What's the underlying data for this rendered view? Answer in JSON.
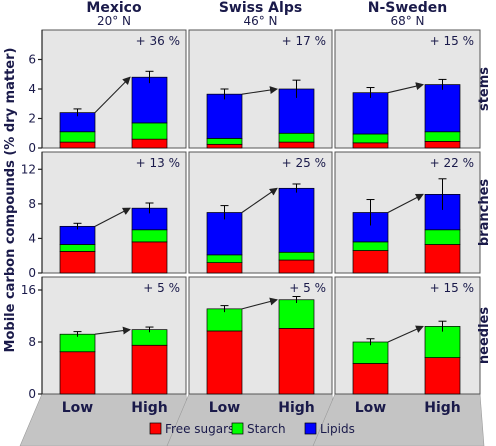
{
  "chart_data": {
    "type": "bar",
    "stacked": true,
    "ylabel": "Mobile carbon compounds (% dry matter)",
    "sites": [
      {
        "name": "Mexico",
        "lat": "20° N"
      },
      {
        "name": "Swiss Alps",
        "lat": "46° N"
      },
      {
        "name": "N-Sweden",
        "lat": "68° N"
      }
    ],
    "tissues": [
      "stems",
      "branches",
      "needles"
    ],
    "categories": [
      "Low",
      "High"
    ],
    "legend": [
      {
        "name": "Free sugars",
        "color": "#ff0000"
      },
      {
        "name": "Starch",
        "color": "#00ff00"
      },
      {
        "name": "Lipids",
        "color": "#0000ff"
      }
    ],
    "legend_position": "bottom",
    "rows": [
      {
        "tissue": "stems",
        "ylim": [
          0,
          8
        ],
        "yticks": [
          0,
          2,
          4,
          6
        ],
        "panels": [
          {
            "site": "Mexico",
            "change": "+ 36 %",
            "bars": [
              {
                "category": "Low",
                "free_sugars": 0.4,
                "starch": 0.7,
                "lipids": 1.3,
                "total": 2.4,
                "error": 0.25
              },
              {
                "category": "High",
                "free_sugars": 0.6,
                "starch": 1.1,
                "lipids": 3.1,
                "total": 4.8,
                "error": 0.4
              }
            ]
          },
          {
            "site": "Swiss Alps",
            "change": "+ 17 %",
            "bars": [
              {
                "category": "Low",
                "free_sugars": 0.25,
                "starch": 0.4,
                "lipids": 3.0,
                "total": 3.65,
                "error": 0.35
              },
              {
                "category": "High",
                "free_sugars": 0.4,
                "starch": 0.6,
                "lipids": 3.0,
                "total": 4.0,
                "error": 0.6
              }
            ]
          },
          {
            "site": "N-Sweden",
            "change": "+ 15 %",
            "bars": [
              {
                "category": "Low",
                "free_sugars": 0.35,
                "starch": 0.6,
                "lipids": 2.8,
                "total": 3.75,
                "error": 0.35
              },
              {
                "category": "High",
                "free_sugars": 0.45,
                "starch": 0.65,
                "lipids": 3.2,
                "total": 4.3,
                "error": 0.35
              }
            ]
          }
        ]
      },
      {
        "tissue": "branches",
        "ylim": [
          0,
          14
        ],
        "yticks": [
          0,
          4,
          8,
          12
        ],
        "panels": [
          {
            "site": "Mexico",
            "change": "+ 13 %",
            "bars": [
              {
                "category": "Low",
                "free_sugars": 2.5,
                "starch": 0.8,
                "lipids": 2.1,
                "total": 5.4,
                "error": 0.35
              },
              {
                "category": "High",
                "free_sugars": 3.6,
                "starch": 1.4,
                "lipids": 2.5,
                "total": 7.5,
                "error": 0.6
              }
            ]
          },
          {
            "site": "Swiss Alps",
            "change": "+ 25 %",
            "bars": [
              {
                "category": "Low",
                "free_sugars": 1.2,
                "starch": 0.9,
                "lipids": 4.9,
                "total": 7.0,
                "error": 0.8
              },
              {
                "category": "High",
                "free_sugars": 1.5,
                "starch": 0.9,
                "lipids": 7.4,
                "total": 9.8,
                "error": 0.5
              }
            ]
          },
          {
            "site": "N-Sweden",
            "change": "+ 22 %",
            "bars": [
              {
                "category": "Low",
                "free_sugars": 2.6,
                "starch": 1.0,
                "lipids": 3.4,
                "total": 7.0,
                "error": 1.5
              },
              {
                "category": "High",
                "free_sugars": 3.3,
                "starch": 1.7,
                "lipids": 4.1,
                "total": 9.1,
                "error": 1.8
              }
            ]
          }
        ]
      },
      {
        "tissue": "needles",
        "ylim": [
          0,
          18
        ],
        "yticks": [
          0,
          8,
          16
        ],
        "panels": [
          {
            "site": "Mexico",
            "change": "+ 5 %",
            "bars": [
              {
                "category": "Low",
                "free_sugars": 6.5,
                "starch": 2.7,
                "lipids": 0,
                "total": 9.2,
                "error": 0.4
              },
              {
                "category": "High",
                "free_sugars": 7.5,
                "starch": 2.4,
                "lipids": 0,
                "total": 9.9,
                "error": 0.4
              }
            ]
          },
          {
            "site": "Swiss Alps",
            "change": "+ 5 %",
            "bars": [
              {
                "category": "Low",
                "free_sugars": 9.7,
                "starch": 3.4,
                "lipids": 0,
                "total": 13.1,
                "error": 0.5
              },
              {
                "category": "High",
                "free_sugars": 10.1,
                "starch": 4.4,
                "lipids": 0,
                "total": 14.5,
                "error": 0.5
              }
            ]
          },
          {
            "site": "N-Sweden",
            "change": "+ 15 %",
            "bars": [
              {
                "category": "Low",
                "free_sugars": 4.7,
                "starch": 3.3,
                "lipids": 0,
                "total": 8.0,
                "error": 0.5
              },
              {
                "category": "High",
                "free_sugars": 5.6,
                "starch": 4.8,
                "lipids": 0,
                "total": 10.4,
                "error": 0.8
              }
            ]
          }
        ]
      }
    ]
  },
  "colors": {
    "panel_bg": "#e6e6e6",
    "ground": "#c4c4c4",
    "axis": "#222222",
    "text": "#1a1a4a"
  }
}
